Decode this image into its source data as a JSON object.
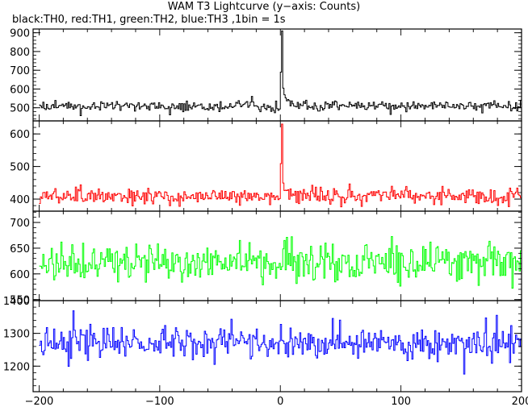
{
  "title": "WAM T3 Lightcurve (y−axis: Counts)",
  "subtitle": "black:TH0, red:TH1, green:TH2, blue:TH3 ,1bin = 1s",
  "chart_data": {
    "type": "line",
    "title": "WAM T3 Lightcurve (y−axis: Counts)",
    "subtitle": "black:TH0, red:TH1, green:TH2, blue:TH3 ,1bin = 1s",
    "xlabel": "",
    "xlim": [
      -205,
      200
    ],
    "x_ticks": [
      -200,
      -100,
      0,
      100,
      200
    ],
    "x_tick_labels": [
      "−200",
      "−100",
      "0",
      "100",
      "200"
    ],
    "panels": [
      {
        "name": "TH0",
        "color": "#000000",
        "ylim": [
          430,
          920
        ],
        "y_ticks": [
          500,
          600,
          700,
          800,
          900
        ],
        "baseline": 510,
        "noise": 22,
        "peak_x": 1,
        "peak_value": 910,
        "x_range": [
          -200,
          200
        ],
        "bin_s": 1
      },
      {
        "name": "TH1",
        "color": "#ff0000",
        "ylim": [
          363,
          640
        ],
        "y_ticks": [
          400,
          500,
          600
        ],
        "baseline": 410,
        "noise": 20,
        "peak_x": 1,
        "peak_value": 630,
        "x_range": [
          -200,
          200
        ],
        "bin_s": 1
      },
      {
        "name": "TH2",
        "color": "#00ff00",
        "ylim": [
          548,
          722
        ],
        "y_ticks": [
          550,
          600,
          650,
          700
        ],
        "baseline": 622,
        "noise": 30,
        "x_range": [
          -200,
          200
        ],
        "bin_s": 1
      },
      {
        "name": "TH3",
        "color": "#0000ff",
        "ylim": [
          1122,
          1400
        ],
        "y_ticks": [
          1200,
          1300,
          1400
        ],
        "baseline": 1272,
        "noise": 40,
        "x_range": [
          -200,
          200
        ],
        "bin_s": 1
      }
    ]
  }
}
